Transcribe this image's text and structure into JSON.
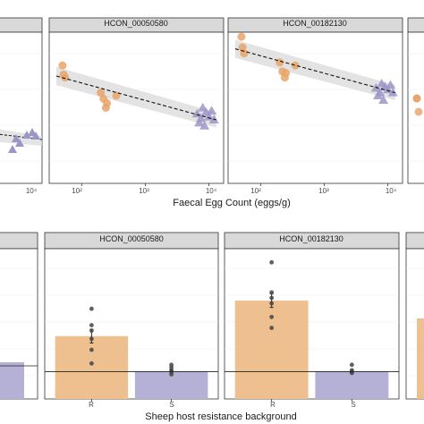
{
  "colors": {
    "strip_bg": "#d9d9d9",
    "panel_border": "#333333",
    "grid": "#ebebeb",
    "orange": "#e8a46a",
    "purple": "#9b96c8",
    "bar_orange": "#efc08f",
    "bar_purple": "#b4b0d6",
    "ci_band": "#d9d9d9",
    "point_dark": "#444444"
  },
  "top_row": {
    "xlabel": "Faecal Egg Count (eggs/g)",
    "panels": [
      {
        "title": "",
        "xticks": [
          "10⁴"
        ]
      },
      {
        "title": "HCON_00050580",
        "xticks": [
          "10²",
          "10³",
          "10⁴"
        ]
      },
      {
        "title": "HCON_00182130",
        "xticks": [
          "10²",
          "10³",
          "10⁴"
        ]
      },
      {
        "title": "",
        "xticks": []
      }
    ]
  },
  "bottom_row": {
    "xlabel": "Sheep host resistance background",
    "panels": [
      {
        "title": ""
      },
      {
        "title": "HCON_00050580",
        "categories": [
          "R",
          "S"
        ]
      },
      {
        "title": "HCON_00182130",
        "categories": [
          "R",
          "S"
        ]
      },
      {
        "title": ""
      }
    ]
  },
  "chart_data": [
    {
      "type": "scatter",
      "panel": "HCON_00050580",
      "x_scale": "log10",
      "xlabel": "Faecal Egg Count (eggs/g)",
      "xlim": [
        40,
        14000
      ],
      "ylim": [
        0,
        10
      ],
      "series": [
        {
          "name": "R",
          "marker": "circle",
          "color": "orange",
          "points": [
            [
              50,
              7.8
            ],
            [
              52,
              7.2
            ],
            [
              55,
              7.0
            ],
            [
              200,
              6.0
            ],
            [
              220,
              5.6
            ],
            [
              240,
              5.0
            ],
            [
              250,
              5.3
            ],
            [
              350,
              5.8
            ]
          ]
        },
        {
          "name": "S",
          "marker": "triangle",
          "color": "purple",
          "points": [
            [
              6500,
              4.6
            ],
            [
              7000,
              4.0
            ],
            [
              7500,
              4.3
            ],
            [
              8000,
              5.0
            ],
            [
              8500,
              3.8
            ],
            [
              9000,
              4.7
            ],
            [
              10000,
              4.4
            ],
            [
              11000,
              4.8
            ],
            [
              12000,
              4.2
            ]
          ]
        }
      ],
      "fit": {
        "from": [
          40,
          7.1
        ],
        "to": [
          13000,
          4.2
        ]
      }
    },
    {
      "type": "scatter",
      "panel": "HCON_00182130",
      "x_scale": "log10",
      "xlabel": "Faecal Egg Count (eggs/g)",
      "xlim": [
        40,
        14000
      ],
      "ylim": [
        0,
        10
      ],
      "series": [
        {
          "name": "R",
          "marker": "circle",
          "color": "orange",
          "points": [
            [
              50,
              9.7
            ],
            [
              52,
              9.0
            ],
            [
              55,
              8.6
            ],
            [
              200,
              8.0
            ],
            [
              220,
              7.4
            ],
            [
              240,
              7.0
            ],
            [
              250,
              7.3
            ],
            [
              350,
              7.8
            ]
          ]
        },
        {
          "name": "S",
          "marker": "triangle",
          "color": "purple",
          "points": [
            [
              6500,
              6.3
            ],
            [
              7000,
              5.8
            ],
            [
              7500,
              6.0
            ],
            [
              8000,
              6.6
            ],
            [
              8500,
              5.5
            ],
            [
              9000,
              6.4
            ],
            [
              10000,
              6.2
            ],
            [
              11000,
              6.5
            ],
            [
              12000,
              6.0
            ]
          ]
        }
      ],
      "fit": {
        "from": [
          40,
          8.9
        ],
        "to": [
          13000,
          6.0
        ]
      }
    },
    {
      "type": "bar",
      "panel": "HCON_00050580",
      "xlabel": "Sheep host resistance background",
      "categories": [
        "R",
        "S"
      ],
      "values": [
        2.3,
        1.0
      ],
      "errors": [
        0.25,
        0.05
      ],
      "points": [
        [
          1.3,
          1.8,
          2.2,
          2.5,
          2.7,
          3.3
        ],
        [
          0.9,
          1.0,
          1.05,
          1.15,
          1.25
        ]
      ],
      "ylim": [
        0,
        5.5
      ],
      "reference_line": 1.0
    },
    {
      "type": "bar",
      "panel": "HCON_00182130",
      "xlabel": "Sheep host resistance background",
      "categories": [
        "R",
        "S"
      ],
      "values": [
        3.6,
        1.0
      ],
      "errors": [
        0.25,
        0.05
      ],
      "points": [
        [
          2.6,
          3.0,
          3.5,
          3.7,
          3.9,
          5.0
        ],
        [
          0.95,
          1.0,
          1.05,
          1.25
        ]
      ],
      "ylim": [
        0,
        5.5
      ],
      "reference_line": 1.0
    }
  ]
}
